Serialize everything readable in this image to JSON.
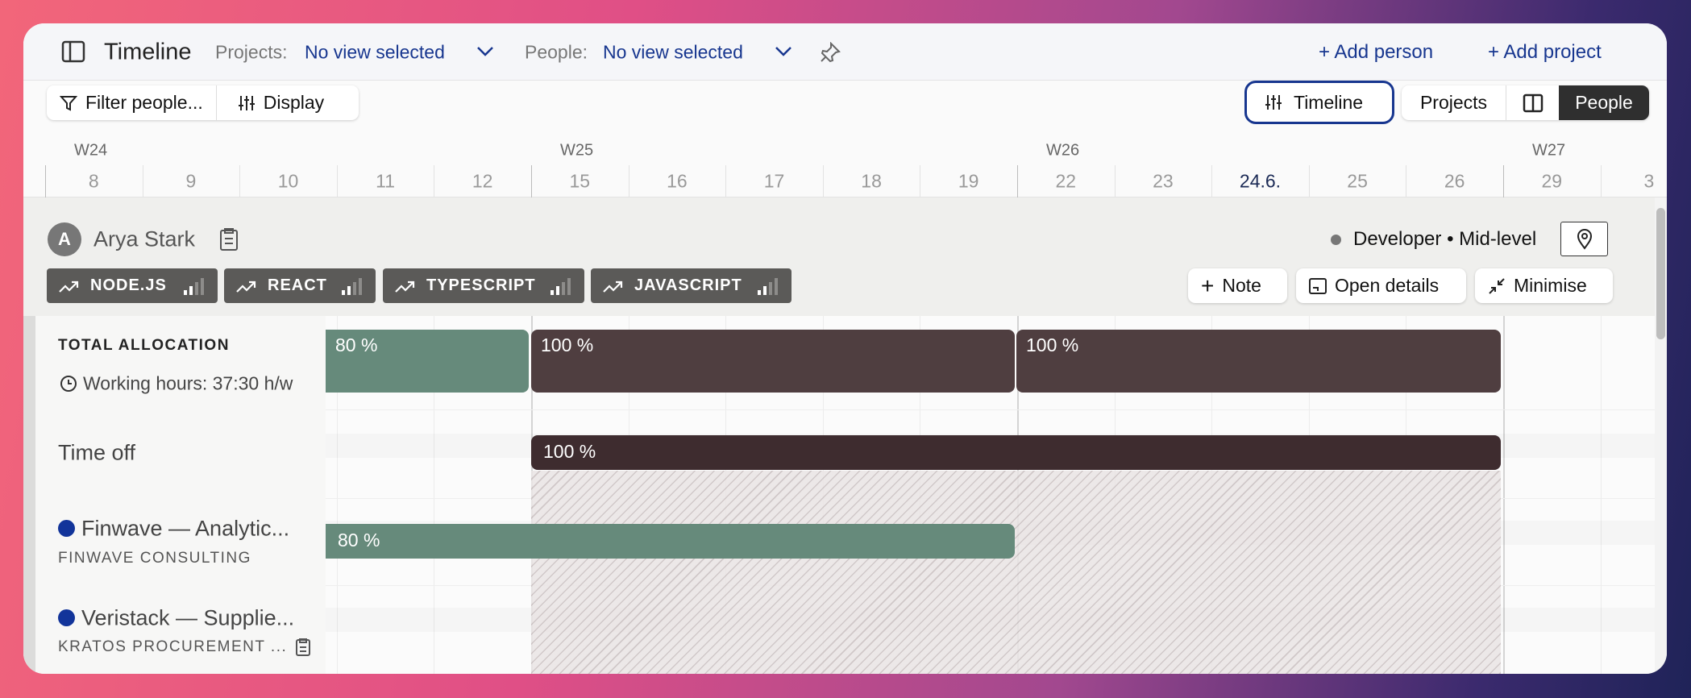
{
  "topbar": {
    "title": "Timeline",
    "projects_label": "Projects:",
    "projects_value": "No view selected",
    "people_label": "People:",
    "people_value": "No view selected",
    "add_person": "Add person",
    "add_project": "Add project"
  },
  "toolbar": {
    "filter": "Filter people...",
    "display": "Display",
    "views": [
      "Timeline",
      "Projects",
      "People"
    ]
  },
  "calendar": {
    "today": "24.6.",
    "days": [
      {
        "day": "8",
        "week": "W24"
      },
      {
        "day": "9"
      },
      {
        "day": "10"
      },
      {
        "day": "11"
      },
      {
        "day": "12"
      },
      {
        "day": "15",
        "week": "W25"
      },
      {
        "day": "16"
      },
      {
        "day": "17"
      },
      {
        "day": "18"
      },
      {
        "day": "19"
      },
      {
        "day": "22",
        "week": "W26"
      },
      {
        "day": "23"
      },
      {
        "day": "24.6."
      },
      {
        "day": "25"
      },
      {
        "day": "26"
      },
      {
        "day": "29",
        "week": "W27"
      },
      {
        "day": "3"
      }
    ]
  },
  "person": {
    "initial": "A",
    "name": "Arya Stark",
    "role": "Developer • Mid-level",
    "skills": [
      "NODE.JS",
      "REACT",
      "TYPESCRIPT",
      "JAVASCRIPT"
    ],
    "actions": [
      "Note",
      "Open details",
      "Minimise"
    ]
  },
  "rows": {
    "total_label": "TOTAL ALLOCATION",
    "working_hours": "Working hours: 37:30 h/w",
    "allocations": [
      "80 %",
      "100 %",
      "100 %"
    ],
    "time_off_label": "Time off",
    "time_off_value": "100 %",
    "projects": [
      {
        "name": "Finwave — Analytic...",
        "client": "FINWAVE CONSULTING",
        "allocation": "80 %"
      },
      {
        "name": "Veristack — Supplie...",
        "client": "KRATOS PROCUREMENT ..."
      }
    ]
  }
}
